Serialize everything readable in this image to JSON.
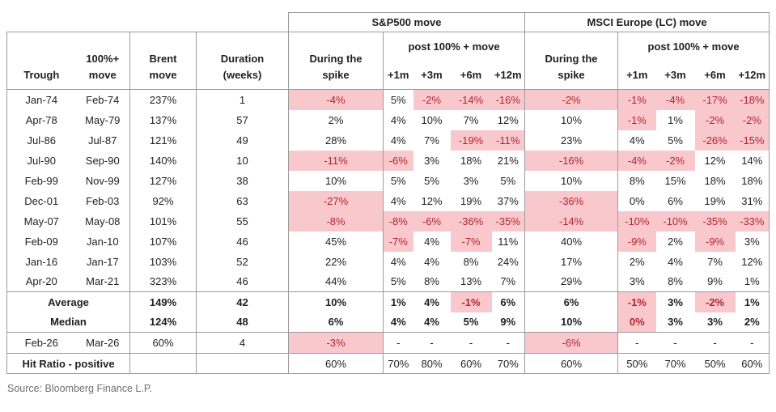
{
  "chart_data": {
    "type": "table",
    "header": {
      "sp_group": "S&P500 move",
      "msci_group": "MSCI Europe (LC) move",
      "post_label": "post 100% + move",
      "trough": "Trough",
      "move": "100%+\nmove",
      "brent": "Brent\nmove",
      "duration": "Duration\n(weeks)",
      "during": "During the\nspike",
      "horizons": [
        "+1m",
        "+3m",
        "+6m",
        "+12m"
      ]
    },
    "rows": [
      {
        "trough": "Jan-74",
        "peak": "Feb-74",
        "brent": "237%",
        "duration": "1",
        "values": [
          "-4%",
          "5%",
          "-2%",
          "-14%",
          "-16%",
          "-2%",
          "-1%",
          "-4%",
          "-17%",
          "-18%"
        ],
        "pink": [
          0,
          2,
          3,
          4,
          5,
          6,
          7,
          8,
          9
        ]
      },
      {
        "trough": "Apr-78",
        "peak": "May-79",
        "brent": "137%",
        "duration": "57",
        "values": [
          "2%",
          "4%",
          "10%",
          "7%",
          "12%",
          "10%",
          "-1%",
          "1%",
          "-2%",
          "-2%"
        ],
        "pink": [
          6,
          8,
          9
        ]
      },
      {
        "trough": "Jul-86",
        "peak": "Jul-87",
        "brent": "121%",
        "duration": "49",
        "values": [
          "28%",
          "4%",
          "7%",
          "-19%",
          "-11%",
          "23%",
          "4%",
          "5%",
          "-26%",
          "-15%"
        ],
        "pink": [
          3,
          4,
          8,
          9
        ]
      },
      {
        "trough": "Jul-90",
        "peak": "Sep-90",
        "brent": "140%",
        "duration": "10",
        "values": [
          "-11%",
          "-6%",
          "3%",
          "18%",
          "21%",
          "-16%",
          "-4%",
          "-2%",
          "12%",
          "14%"
        ],
        "pink": [
          0,
          1,
          5,
          6,
          7
        ]
      },
      {
        "trough": "Feb-99",
        "peak": "Nov-99",
        "brent": "127%",
        "duration": "38",
        "values": [
          "10%",
          "5%",
          "5%",
          "3%",
          "5%",
          "10%",
          "8%",
          "15%",
          "18%",
          "18%"
        ],
        "pink": []
      },
      {
        "trough": "Dec-01",
        "peak": "Feb-03",
        "brent": "92%",
        "duration": "63",
        "values": [
          "-27%",
          "4%",
          "12%",
          "19%",
          "37%",
          "-36%",
          "0%",
          "6%",
          "19%",
          "31%"
        ],
        "pink": [
          0,
          5
        ]
      },
      {
        "trough": "May-07",
        "peak": "May-08",
        "brent": "101%",
        "duration": "55",
        "values": [
          "-8%",
          "-8%",
          "-6%",
          "-36%",
          "-35%",
          "-14%",
          "-10%",
          "-10%",
          "-35%",
          "-33%"
        ],
        "pink": [
          0,
          1,
          2,
          3,
          4,
          5,
          6,
          7,
          8,
          9
        ]
      },
      {
        "trough": "Feb-09",
        "peak": "Jan-10",
        "brent": "107%",
        "duration": "46",
        "values": [
          "45%",
          "-7%",
          "4%",
          "-7%",
          "11%",
          "40%",
          "-9%",
          "2%",
          "-9%",
          "3%"
        ],
        "pink": [
          1,
          3,
          6,
          8
        ]
      },
      {
        "trough": "Jan-16",
        "peak": "Jan-17",
        "brent": "103%",
        "duration": "52",
        "values": [
          "22%",
          "4%",
          "4%",
          "8%",
          "24%",
          "17%",
          "2%",
          "4%",
          "7%",
          "12%"
        ],
        "pink": []
      },
      {
        "trough": "Apr-20",
        "peak": "Mar-21",
        "brent": "323%",
        "duration": "46",
        "values": [
          "44%",
          "5%",
          "8%",
          "13%",
          "7%",
          "29%",
          "3%",
          "8%",
          "9%",
          "1%"
        ],
        "pink": []
      }
    ],
    "summary": [
      {
        "label": "Average",
        "brent": "149%",
        "duration": "42",
        "values": [
          "10%",
          "1%",
          "4%",
          "-1%",
          "6%",
          "6%",
          "-1%",
          "3%",
          "-2%",
          "1%"
        ],
        "pink": [
          3,
          6,
          8
        ]
      },
      {
        "label": "Median",
        "brent": "124%",
        "duration": "48",
        "values": [
          "6%",
          "4%",
          "4%",
          "5%",
          "9%",
          "10%",
          "0%",
          "3%",
          "3%",
          "2%"
        ],
        "pink": [
          6
        ]
      }
    ],
    "upcoming": {
      "trough": "Feb-26",
      "peak": "Mar-26",
      "brent": "60%",
      "duration": "4",
      "values": [
        "-3%",
        "-",
        "-",
        "-",
        "-",
        "-6%",
        "-",
        "-",
        "-",
        "-"
      ],
      "pink": [
        0,
        5
      ]
    },
    "hit_ratio": {
      "label": "Hit Ratio - positive",
      "values": [
        "60%",
        "70%",
        "80%",
        "60%",
        "70%",
        "60%",
        "50%",
        "70%",
        "50%",
        "60%"
      ]
    }
  },
  "source": "Source: Bloomberg Finance L.P.",
  "colors": {
    "highlight_bg": "#f9c8cd",
    "highlight_text": "#b3242e",
    "border": "#9b9b9b",
    "text": "#1f1f1f",
    "source_text": "#6f6f6f"
  }
}
